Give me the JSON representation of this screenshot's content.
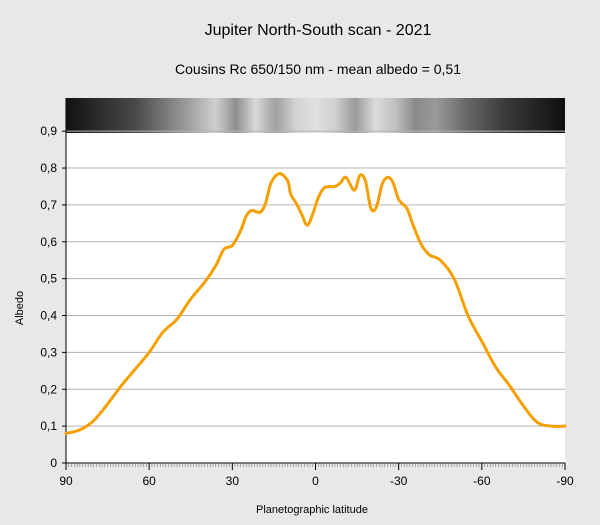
{
  "chart_data": {
    "type": "line",
    "title": "Jupiter North-South scan - 2021",
    "subtitle": "Cousins Rc 650/150 nm - mean albedo = 0,51",
    "xlabel": "Planetographic latitude",
    "ylabel": "Albedo",
    "xlim": [
      90,
      -90
    ],
    "ylim": [
      0,
      0.99
    ],
    "xticks": [
      90,
      60,
      30,
      0,
      -30,
      -60,
      -90
    ],
    "xtick_labels": [
      "90",
      "60",
      "30",
      "0",
      "-30",
      "-60",
      "-90"
    ],
    "yticks": [
      0,
      0.1,
      0.2,
      0.3,
      0.4,
      0.5,
      0.6,
      0.7,
      0.8,
      0.9
    ],
    "ytick_labels": [
      "0",
      "0,1",
      "0,2",
      "0,3",
      "0,4",
      "0,5",
      "0,6",
      "0,7",
      "0,8",
      "0,9"
    ],
    "grid": "horizontal",
    "series": [
      {
        "color": "#f5a000",
        "x": [
          90,
          85,
          80,
          75,
          70,
          65,
          60,
          55,
          50,
          45,
          40,
          36,
          33,
          30,
          27,
          25,
          23,
          20,
          18,
          16,
          13,
          10,
          9,
          7,
          5,
          3,
          1,
          -1,
          -3,
          -5,
          -7,
          -9,
          -11,
          -14,
          -16,
          -18,
          -20,
          -22,
          -24,
          -26,
          -28,
          -30,
          -33,
          -35,
          -38,
          -41,
          -45,
          -50,
          -55,
          -60,
          -65,
          -70,
          -75,
          -80,
          -85,
          -90
        ],
        "values": [
          0.08,
          0.09,
          0.115,
          0.16,
          0.21,
          0.255,
          0.3,
          0.355,
          0.39,
          0.445,
          0.49,
          0.535,
          0.58,
          0.59,
          0.63,
          0.67,
          0.685,
          0.68,
          0.705,
          0.76,
          0.785,
          0.765,
          0.73,
          0.705,
          0.675,
          0.645,
          0.675,
          0.72,
          0.745,
          0.75,
          0.75,
          0.76,
          0.775,
          0.74,
          0.78,
          0.765,
          0.69,
          0.695,
          0.755,
          0.775,
          0.76,
          0.715,
          0.69,
          0.65,
          0.595,
          0.565,
          0.55,
          0.5,
          0.4,
          0.33,
          0.26,
          0.21,
          0.155,
          0.11,
          0.1,
          0.1
        ]
      }
    ]
  },
  "strip_image": {
    "description_colors": [
      "#222222",
      "#7a7a7a",
      "#c8c8c8",
      "#1a1a1a"
    ]
  }
}
